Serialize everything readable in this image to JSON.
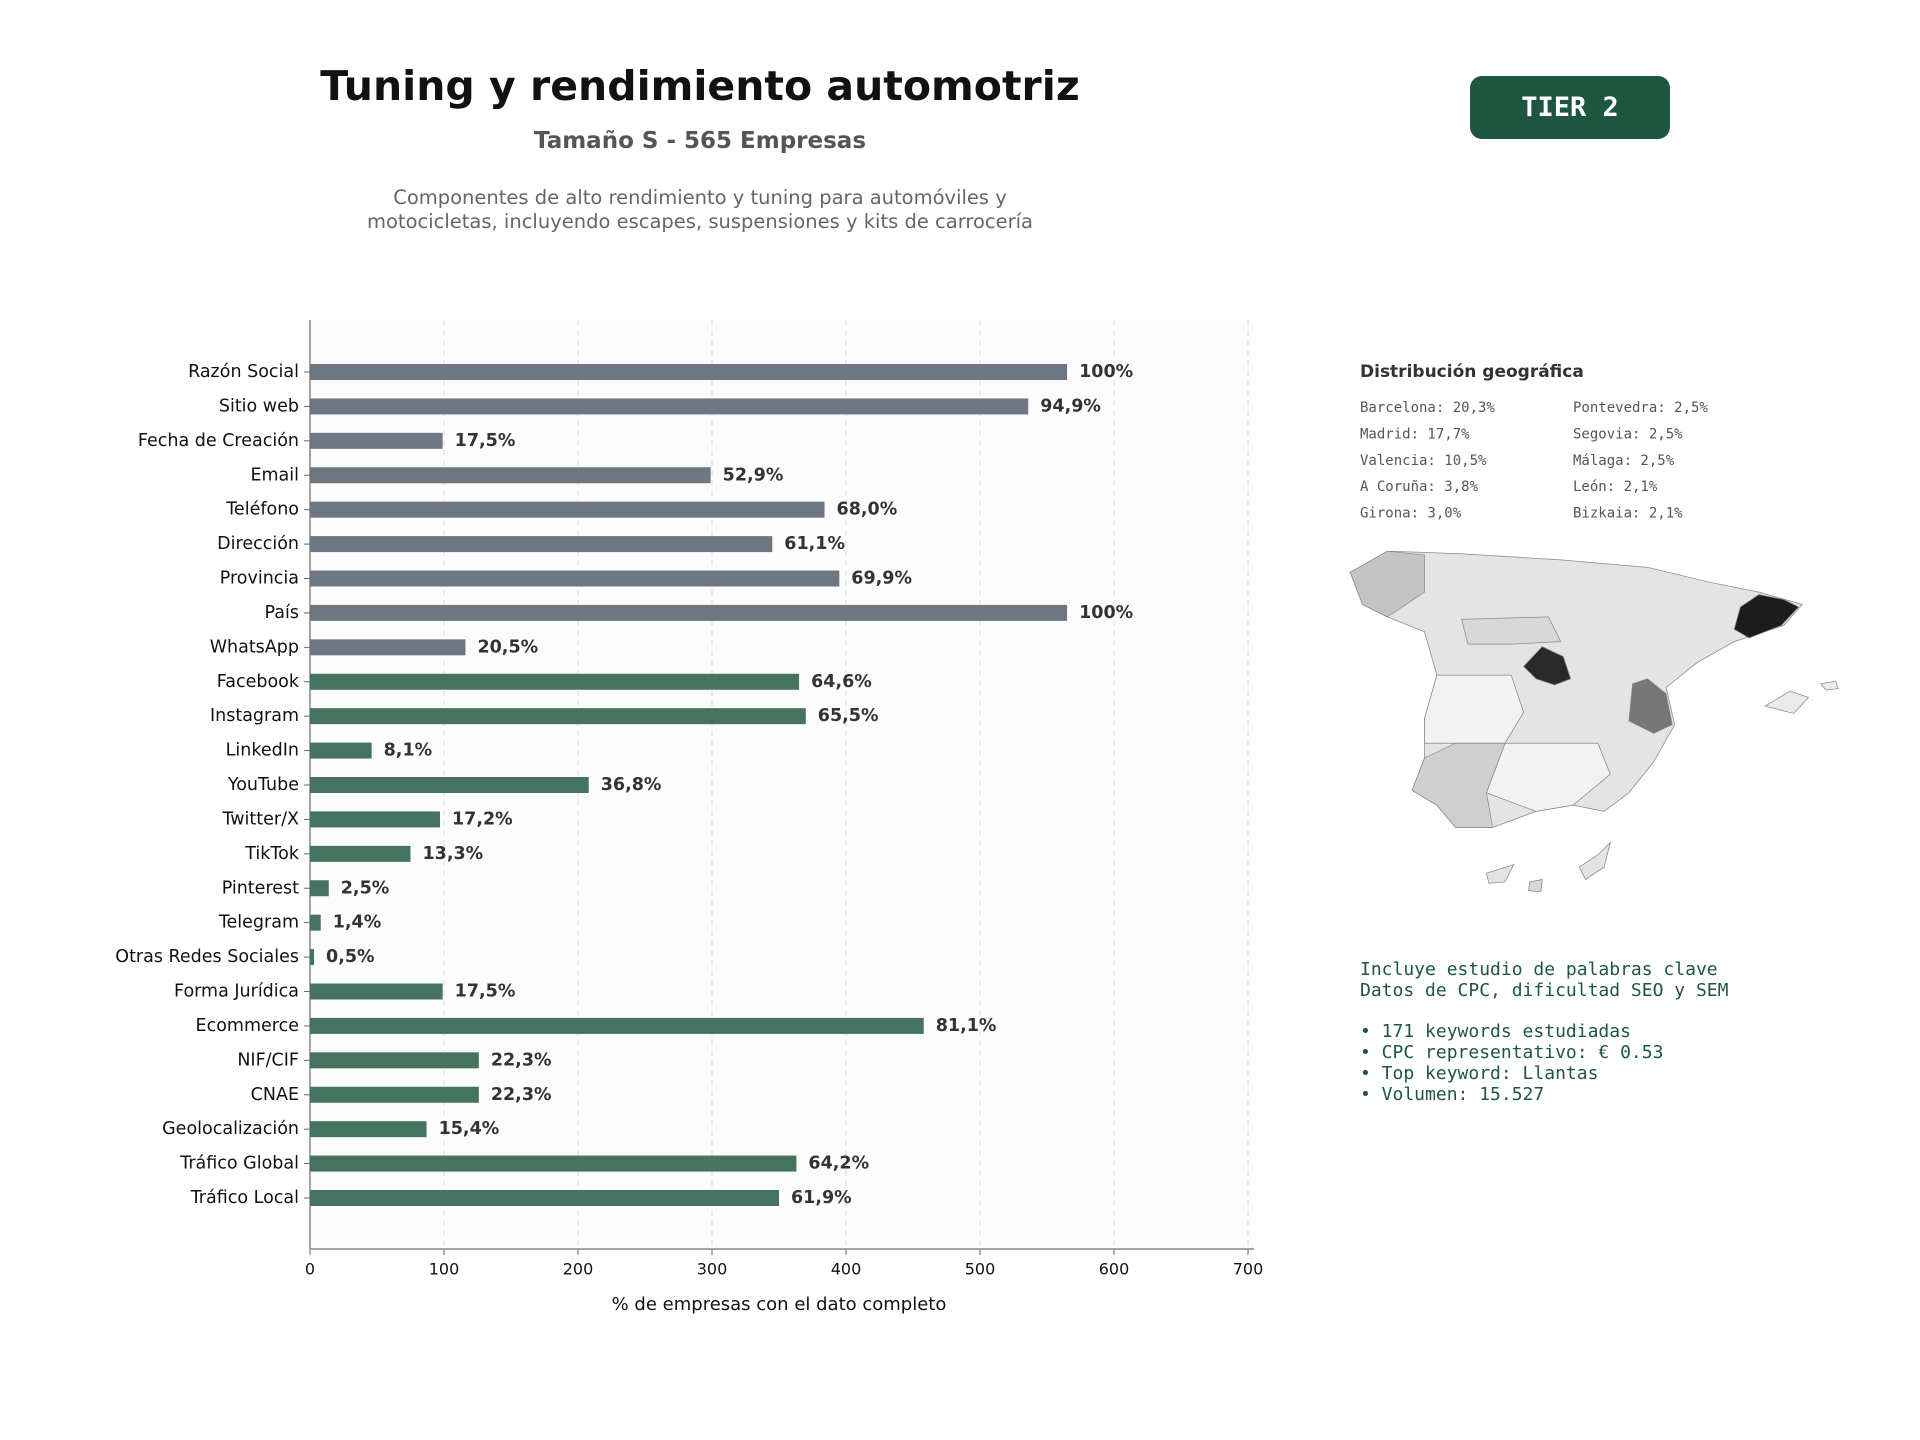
{
  "chart_data": {
    "type": "bar",
    "orientation": "horizontal",
    "title": "Tuning y rendimiento automotriz",
    "subtitle": "Tamaño S - 565 Empresas",
    "description": "Componentes de alto rendimiento y tuning para automóviles y motocicletas, incluyendo escapes, suspensiones y kits de carrocería",
    "badge": "TIER 2",
    "xlabel": "% de empresas con el dato completo",
    "categories": [
      "Razón Social",
      "Sitio web",
      "Fecha de Creación",
      "Email",
      "Teléfono",
      "Dirección",
      "Provincia",
      "País",
      "WhatsApp",
      "Facebook",
      "Instagram",
      "LinkedIn",
      "YouTube",
      "Twitter/X",
      "TikTok",
      "Pinterest",
      "Telegram",
      "Otras Redes Sociales",
      "Forma Jurídica",
      "Ecommerce",
      "NIF/CIF",
      "CNAE",
      "Geolocalización",
      "Tráfico Global",
      "Tráfico Local"
    ],
    "values": [
      565,
      536,
      99,
      299,
      384,
      345,
      395,
      565,
      116,
      365,
      370,
      46,
      208,
      97,
      75,
      14,
      8,
      3,
      99,
      458,
      126,
      126,
      87,
      363,
      350
    ],
    "value_labels": [
      "100%",
      "94,9%",
      "17,5%",
      "52,9%",
      "68,0%",
      "61,1%",
      "69,9%",
      "100%",
      "20,5%",
      "64,6%",
      "65,5%",
      "8,1%",
      "36,8%",
      "17,2%",
      "13,3%",
      "2,5%",
      "1,4%",
      "0,5%",
      "17,5%",
      "81,1%",
      "22,3%",
      "22,3%",
      "15,4%",
      "64,2%",
      "61,9%"
    ],
    "colors": [
      "#6e7781",
      "#6e7781",
      "#6e7781",
      "#6e7781",
      "#6e7781",
      "#6e7781",
      "#6e7781",
      "#6e7781",
      "#6e7781",
      "#46735f",
      "#46735f",
      "#46735f",
      "#46735f",
      "#46735f",
      "#46735f",
      "#46735f",
      "#46735f",
      "#46735f",
      "#46735f",
      "#46735f",
      "#46735f",
      "#46735f",
      "#46735f",
      "#46735f",
      "#46735f"
    ],
    "xlim": [
      0,
      700
    ],
    "xticks": [
      0,
      100,
      200,
      300,
      400,
      500,
      600,
      700
    ],
    "grid": true
  },
  "geo": {
    "title": "Distribución geográfica",
    "items": [
      "Barcelona: 20,3%",
      "Madrid: 17,7%",
      "Valencia: 10,5%",
      "A Coruña: 3,8%",
      "Girona: 3,0%",
      "Pontevedra: 2,5%",
      "Segovia: 2,5%",
      "Málaga: 2,5%",
      "León: 2,1%",
      "Bizkaia: 2,1%"
    ]
  },
  "keywords": {
    "lines": [
      "Incluye estudio de palabras clave",
      "Datos de CPC, dificultad SEO y SEM",
      "• 171 keywords estudiadas",
      "• CPC representativo: € 0.53",
      "• Top keyword: Llantas",
      "• Volumen: 15.527"
    ]
  }
}
